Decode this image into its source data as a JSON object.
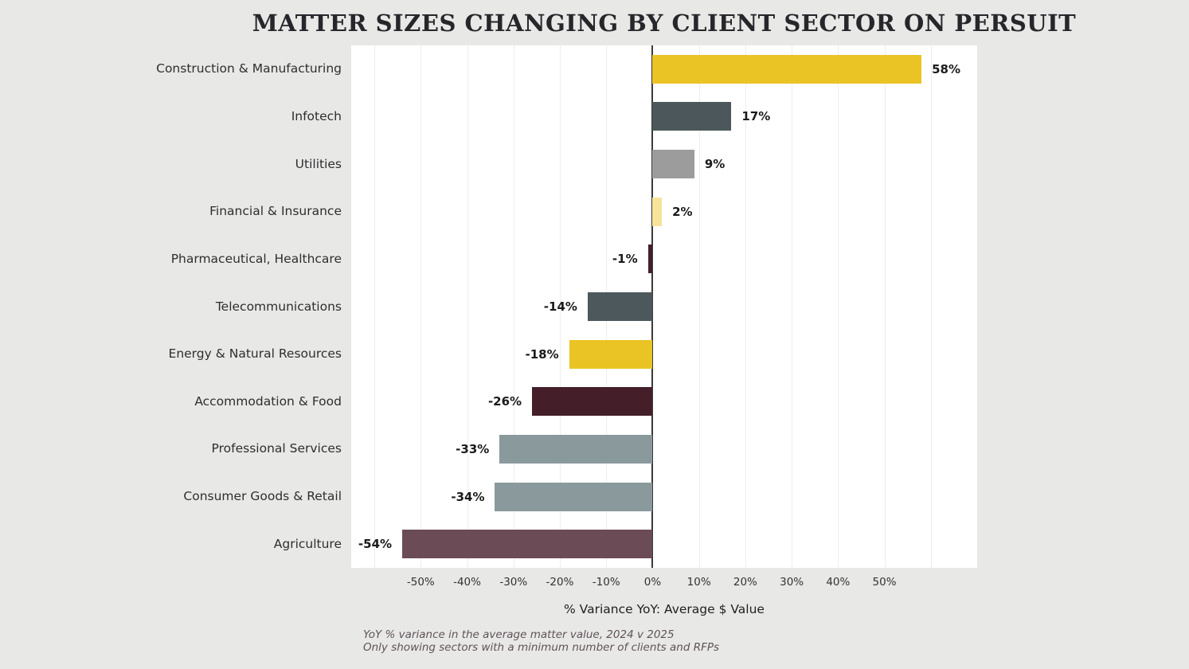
{
  "title": "MATTER SIZES CHANGING BY CLIENT SECTOR ON PERSUIT",
  "xaxis_label": "% Variance YoY: Average $ Value",
  "footnote_line1": "YoY % variance in the average matter value, 2024 v 2025",
  "footnote_line2": "Only showing sectors with a minimum number of clients and RFPs",
  "colors": {
    "background": "#e8e8e7",
    "plot_background": "#ffffff",
    "zero_line": "#3a3a3a",
    "gridline": "#ededed",
    "gold": "#eac424",
    "light_gold": "#f7e49b",
    "dark_slate": "#4b575b",
    "gray": "#9c9c9c",
    "gray_blue": "#8a999c",
    "dark_maroon": "#441f2a",
    "mauve": "#6b4b55"
  },
  "chart_data": {
    "type": "bar",
    "orientation": "horizontal",
    "title": "MATTER SIZES CHANGING BY CLIENT SECTOR ON PERSUIT",
    "xlabel": "% Variance YoY: Average $ Value",
    "ylabel": "",
    "xmin": -65,
    "xmax": 70,
    "grid": true,
    "categories": [
      "Construction & Manufacturing",
      "Infotech",
      "Utilities",
      "Financial & Insurance",
      "Pharmaceutical, Healthcare",
      "Telecommunications",
      "Energy & Natural Resources",
      "Accommodation & Food",
      "Professional Services",
      "Consumer Goods & Retail",
      "Agriculture"
    ],
    "values": [
      58,
      17,
      9,
      2,
      -1,
      -14,
      -18,
      -26,
      -33,
      -34,
      -54
    ],
    "value_labels": [
      "58%",
      "17%",
      "9%",
      "2%",
      "-1%",
      "-14%",
      "-18%",
      "-26%",
      "-33%",
      "-34%",
      "-54%"
    ],
    "bar_colors": [
      "#eac424",
      "#4b575b",
      "#9c9c9c",
      "#f7e49b",
      "#441f2a",
      "#4c585c",
      "#eac424",
      "#441f2a",
      "#8a999c",
      "#8a999c",
      "#6b4b55"
    ],
    "bar_dotted": [
      false,
      false,
      true,
      true,
      false,
      false,
      false,
      false,
      false,
      false,
      false
    ],
    "gridline_values": [
      -60,
      -50,
      -40,
      -30,
      -20,
      -10,
      10,
      20,
      30,
      40,
      50,
      60
    ],
    "ticks": [
      {
        "value": -50,
        "label": "-50%"
      },
      {
        "value": -40,
        "label": "-40%"
      },
      {
        "value": -30,
        "label": "-30%"
      },
      {
        "value": -20,
        "label": "-20%"
      },
      {
        "value": -10,
        "label": "-10%"
      },
      {
        "value": 0,
        "label": "0%"
      },
      {
        "value": 10,
        "label": "10%"
      },
      {
        "value": 20,
        "label": "20%"
      },
      {
        "value": 30,
        "label": "30%"
      },
      {
        "value": 40,
        "label": "40%"
      },
      {
        "value": 50,
        "label": "50%"
      }
    ]
  }
}
